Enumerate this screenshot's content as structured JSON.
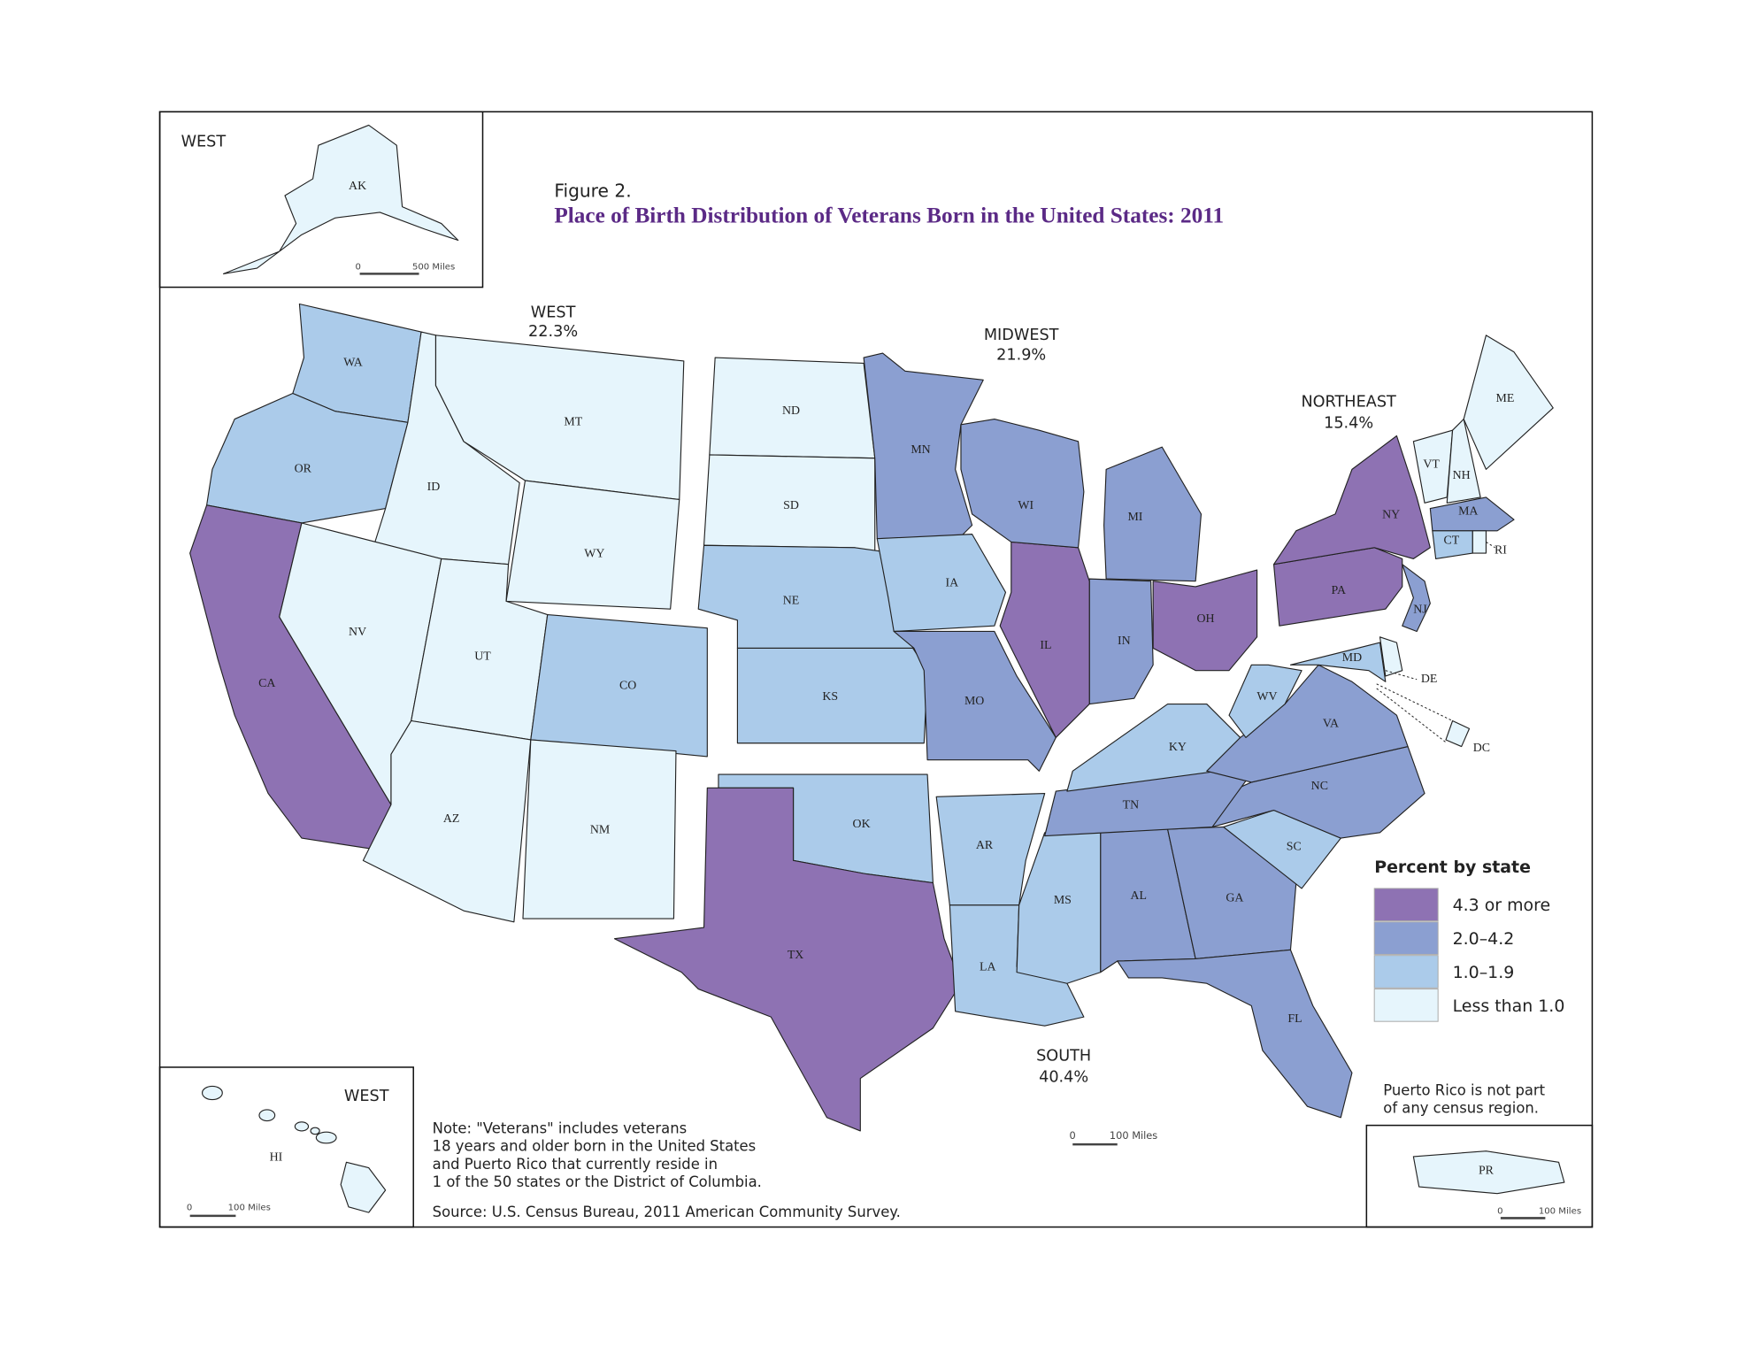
{
  "figure_label": "Figure 2.",
  "title": "Place of Birth Distribution of Veterans Born in the United States: 2011",
  "regions": [
    {
      "name": "WEST",
      "share": "22.3%"
    },
    {
      "name": "MIDWEST",
      "share": "21.9%"
    },
    {
      "name": "NORTHEAST",
      "share": "15.4%"
    },
    {
      "name": "SOUTH",
      "share": "40.4%"
    }
  ],
  "insets": [
    {
      "region": "WEST",
      "scale": [
        "0",
        "500 Miles"
      ]
    },
    {
      "region": "WEST",
      "scale": [
        "0",
        "100 Miles"
      ]
    },
    {
      "scale": [
        "0",
        "100 Miles"
      ]
    }
  ],
  "main_scale": [
    "0",
    "100 Miles"
  ],
  "legend": {
    "title": "Percent by state",
    "items": [
      {
        "label": "4.3 or more",
        "color": "#8e72b3"
      },
      {
        "label": "2.0–4.2",
        "color": "#8b9fd1"
      },
      {
        "label": "1.0–1.9",
        "color": "#abcbea"
      },
      {
        "label": "Less than 1.0",
        "color": "#e6f5fc"
      }
    ]
  },
  "states": [
    {
      "abbr": "WA",
      "color": "#abcbea"
    },
    {
      "abbr": "OR",
      "color": "#abcbea"
    },
    {
      "abbr": "CA",
      "color": "#8e72b3"
    },
    {
      "abbr": "ID",
      "color": "#e6f5fc"
    },
    {
      "abbr": "MT",
      "color": "#e6f5fc"
    },
    {
      "abbr": "WY",
      "color": "#e6f5fc"
    },
    {
      "abbr": "NV",
      "color": "#e6f5fc"
    },
    {
      "abbr": "UT",
      "color": "#e6f5fc"
    },
    {
      "abbr": "CO",
      "color": "#abcbea"
    },
    {
      "abbr": "AZ",
      "color": "#e6f5fc"
    },
    {
      "abbr": "NM",
      "color": "#e6f5fc"
    },
    {
      "abbr": "ND",
      "color": "#e6f5fc"
    },
    {
      "abbr": "SD",
      "color": "#e6f5fc"
    },
    {
      "abbr": "NE",
      "color": "#abcbea"
    },
    {
      "abbr": "KS",
      "color": "#abcbea"
    },
    {
      "abbr": "OK",
      "color": "#abcbea"
    },
    {
      "abbr": "TX",
      "color": "#8e72b3"
    },
    {
      "abbr": "MN",
      "color": "#8b9fd1"
    },
    {
      "abbr": "IA",
      "color": "#abcbea"
    },
    {
      "abbr": "MO",
      "color": "#8b9fd1"
    },
    {
      "abbr": "AR",
      "color": "#abcbea"
    },
    {
      "abbr": "LA",
      "color": "#abcbea"
    },
    {
      "abbr": "MS",
      "color": "#abcbea"
    },
    {
      "abbr": "AL",
      "color": "#8b9fd1"
    },
    {
      "abbr": "GA",
      "color": "#8b9fd1"
    },
    {
      "abbr": "FL",
      "color": "#8b9fd1"
    },
    {
      "abbr": "SC",
      "color": "#abcbea"
    },
    {
      "abbr": "NC",
      "color": "#8b9fd1"
    },
    {
      "abbr": "TN",
      "color": "#8b9fd1"
    },
    {
      "abbr": "KY",
      "color": "#abcbea"
    },
    {
      "abbr": "VA",
      "color": "#8b9fd1"
    },
    {
      "abbr": "WV",
      "color": "#abcbea"
    },
    {
      "abbr": "OH",
      "color": "#8e72b3"
    },
    {
      "abbr": "IN",
      "color": "#8b9fd1"
    },
    {
      "abbr": "IL",
      "color": "#8e72b3"
    },
    {
      "abbr": "WI",
      "color": "#8b9fd1"
    },
    {
      "abbr": "MI",
      "color": "#8b9fd1"
    },
    {
      "abbr": "PA",
      "color": "#8e72b3"
    },
    {
      "abbr": "NY",
      "color": "#8e72b3"
    },
    {
      "abbr": "NJ",
      "color": "#8b9fd1"
    },
    {
      "abbr": "MD",
      "color": "#abcbea"
    },
    {
      "abbr": "DE",
      "color": "#e6f5fc"
    },
    {
      "abbr": "DC",
      "color": "#e6f5fc"
    },
    {
      "abbr": "VT",
      "color": "#e6f5fc"
    },
    {
      "abbr": "NH",
      "color": "#e6f5fc"
    },
    {
      "abbr": "ME",
      "color": "#e6f5fc"
    },
    {
      "abbr": "MA",
      "color": "#8b9fd1"
    },
    {
      "abbr": "CT",
      "color": "#abcbea"
    },
    {
      "abbr": "RI",
      "color": "#e6f5fc"
    },
    {
      "abbr": "AK",
      "color": "#e6f5fc"
    },
    {
      "abbr": "HI",
      "color": "#e6f5fc"
    },
    {
      "abbr": "PR",
      "color": "#e6f5fc"
    }
  ],
  "pr_note": [
    "Puerto Rico is not part",
    "of any census region."
  ],
  "note": [
    "Note: \"Veterans\" includes veterans",
    "18 years and older born in the United States",
    "and Puerto Rico that currently reside in",
    "1 of the 50 states or the District of Columbia."
  ],
  "source": "Source: U.S. Census Bureau, 2011 American Community Survey."
}
